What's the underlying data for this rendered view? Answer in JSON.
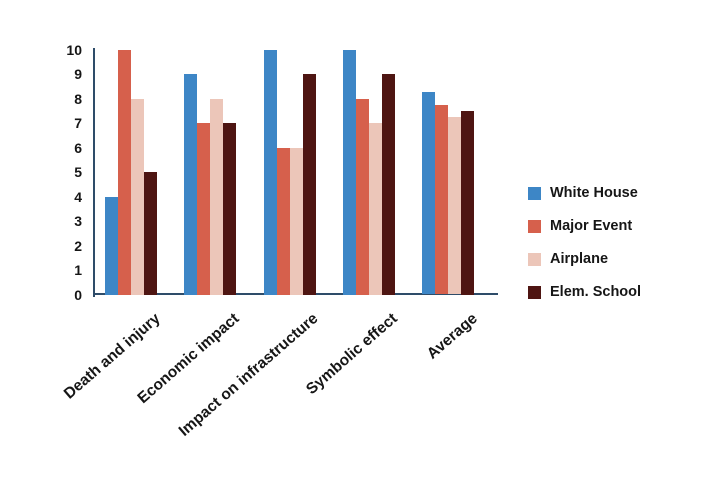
{
  "chart_data": {
    "type": "bar",
    "title": "",
    "xlabel": "",
    "ylabel": "",
    "categories": [
      "Death and injury",
      "Economic impact",
      "Impact on infrastructure",
      "Symbolic effect",
      "Average"
    ],
    "series": [
      {
        "name": "White House",
        "color": "#3d86c6",
        "values": [
          4,
          9,
          10,
          10,
          8.25
        ]
      },
      {
        "name": "Major Event",
        "color": "#d6604c",
        "values": [
          10,
          7,
          6,
          8,
          7.75
        ]
      },
      {
        "name": "Airplane",
        "color": "#ecc6b9",
        "values": [
          8,
          8,
          6,
          7,
          7.25
        ]
      },
      {
        "name": "Elem. School",
        "color": "#4e1512",
        "values": [
          5,
          7,
          9,
          9,
          7.5
        ]
      }
    ],
    "ylim": [
      0,
      10
    ],
    "yticks": [
      0,
      1,
      2,
      3,
      4,
      5,
      6,
      7,
      8,
      9,
      10
    ],
    "grid": false,
    "legend_position": "right",
    "axis_color": "#2e4c69",
    "background_color": "#ffffff",
    "text_color": "#161616"
  }
}
